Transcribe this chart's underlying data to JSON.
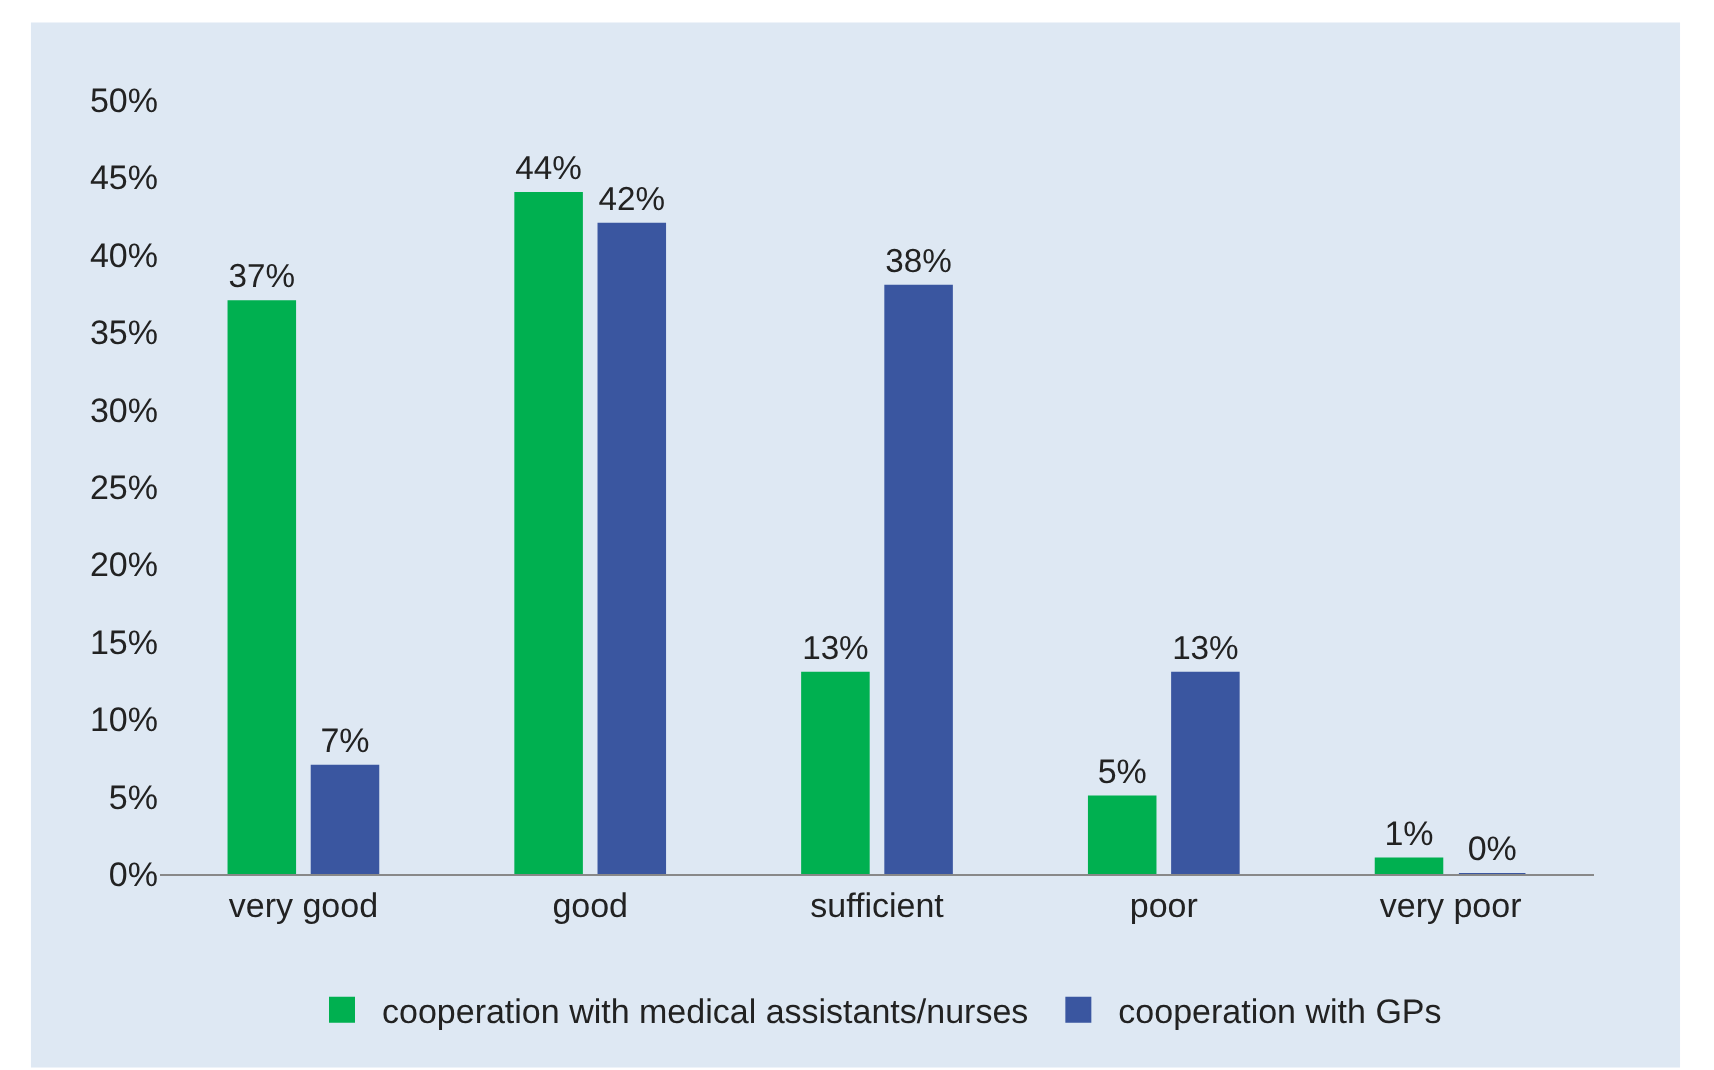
{
  "chart_data": {
    "type": "bar",
    "categories": [
      "very good",
      "good",
      "sufficient",
      "poor",
      "very poor"
    ],
    "series": [
      {
        "name": "cooperation with medical assistants/nurses",
        "color": "#00b050",
        "values": [
          37,
          44,
          13,
          5,
          1
        ],
        "value_labels": [
          "37%",
          "44%",
          "13%",
          "5%",
          "1%"
        ]
      },
      {
        "name": "cooperation with GPs",
        "color": "#3a56a0",
        "values": [
          7,
          42,
          38,
          13,
          0
        ],
        "value_labels": [
          "7%",
          "42%",
          "38%",
          "13%",
          "0%"
        ]
      }
    ],
    "ylim": [
      0,
      50
    ],
    "yticks": [
      {
        "value": 0,
        "label": "0%"
      },
      {
        "value": 5,
        "label": "5%"
      },
      {
        "value": 10,
        "label": "10%"
      },
      {
        "value": 15,
        "label": "15%"
      },
      {
        "value": 20,
        "label": "20%"
      },
      {
        "value": 25,
        "label": "25%"
      },
      {
        "value": 30,
        "label": "30%"
      },
      {
        "value": 35,
        "label": "35%"
      },
      {
        "value": 40,
        "label": "40%"
      },
      {
        "value": 45,
        "label": "45%"
      },
      {
        "value": 50,
        "label": "50%"
      }
    ],
    "grid": false,
    "legend": "bottom"
  }
}
